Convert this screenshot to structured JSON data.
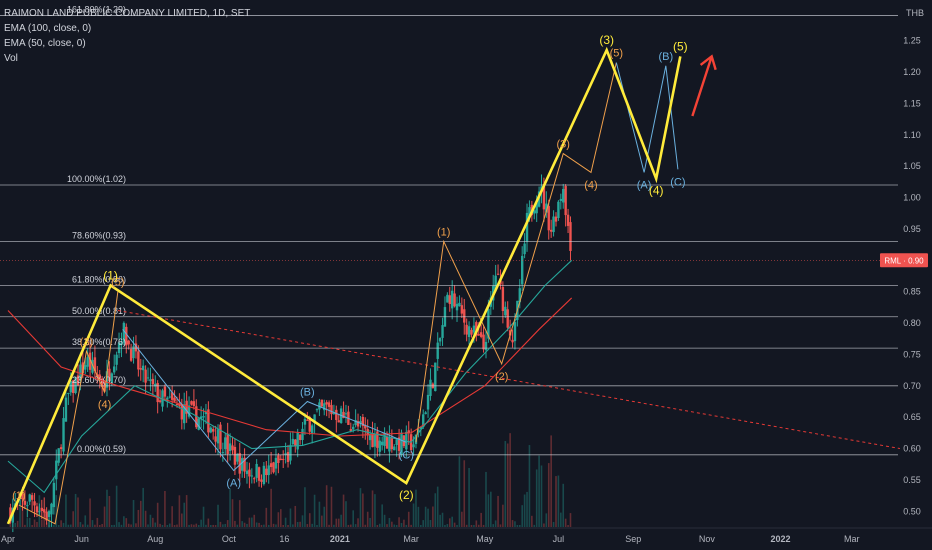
{
  "legend": {
    "title": "RAIMON LAND PUBLIC COMPANY LIMITED, 1D, SET",
    "ema100": "EMA (100, close, 0)",
    "ema50": "EMA (50, close, 0)",
    "vol": "Vol"
  },
  "currency": "THB",
  "last_price_tag": "RML · 0.90",
  "colors": {
    "background": "#131722",
    "candle_up": "#26a69a",
    "candle_down": "#ef5350",
    "fib": "#d1d4dc",
    "wave_main": "#ffeb3b",
    "wave_sub": "#f0a04b",
    "wave_corr": "#6ab0de",
    "ema100": "#e53935",
    "ema50": "#26a69a",
    "arrow": "#f44336",
    "trend": "#e53935"
  },
  "chart_data": {
    "type": "candlestick",
    "x_ticks": [
      "Apr",
      "Jun",
      "Aug",
      "Oct",
      "16",
      "2021",
      "Mar",
      "May",
      "Jul",
      "Sep",
      "Nov",
      "2022",
      "Mar"
    ],
    "y_ticks": [
      0.5,
      0.55,
      0.6,
      0.65,
      0.7,
      0.75,
      0.8,
      0.85,
      0.9,
      0.95,
      1.0,
      1.05,
      1.1,
      1.15,
      1.2,
      1.25
    ],
    "ylim": [
      0.475,
      1.31
    ],
    "last_price": 0.9,
    "fib_levels": [
      {
        "label": "161.80%(1.29)",
        "value": 1.29
      },
      {
        "label": "100.00%(1.02)",
        "value": 1.02
      },
      {
        "label": "78.60%(0.93)",
        "value": 0.93
      },
      {
        "label": "61.80%(0.86)",
        "value": 0.86
      },
      {
        "label": "50.00%(0.81)",
        "value": 0.81
      },
      {
        "label": "38.20%(0.76)",
        "value": 0.76
      },
      {
        "label": "23.60%(0.70)",
        "value": 0.7
      },
      {
        "label": "0.00%(0.59)",
        "value": 0.59
      }
    ],
    "price_series": [
      [
        "2020-04-01",
        0.5
      ],
      [
        "2020-04-20",
        0.52
      ],
      [
        "2020-05-05",
        0.49
      ],
      [
        "2020-05-20",
        0.68
      ],
      [
        "2020-06-05",
        0.74
      ],
      [
        "2020-06-20",
        0.7
      ],
      [
        "2020-07-05",
        0.79
      ],
      [
        "2020-07-20",
        0.72
      ],
      [
        "2020-08-05",
        0.68
      ],
      [
        "2020-08-25",
        0.66
      ],
      [
        "2020-09-15",
        0.64
      ],
      [
        "2020-09-30",
        0.6
      ],
      [
        "2020-10-15",
        0.565
      ],
      [
        "2020-11-01",
        0.56
      ],
      [
        "2020-11-20",
        0.59
      ],
      [
        "2020-12-05",
        0.64
      ],
      [
        "2020-12-20",
        0.665
      ],
      [
        "2021-01-05",
        0.65
      ],
      [
        "2021-01-25",
        0.62
      ],
      [
        "2021-02-15",
        0.61
      ],
      [
        "2021-03-05",
        0.61
      ],
      [
        "2021-03-20",
        0.72
      ],
      [
        "2021-04-01",
        0.85
      ],
      [
        "2021-04-15",
        0.8
      ],
      [
        "2021-04-30",
        0.76
      ],
      [
        "2021-05-10",
        0.88
      ],
      [
        "2021-05-25",
        0.77
      ],
      [
        "2021-06-05",
        0.96
      ],
      [
        "2021-06-15",
        1.02
      ],
      [
        "2021-06-25",
        0.95
      ],
      [
        "2021-07-05",
        1.02
      ],
      [
        "2021-07-12",
        0.9
      ]
    ],
    "ema100_series": [
      [
        "2020-04-01",
        0.82
      ],
      [
        "2020-05-15",
        0.73
      ],
      [
        "2020-07-01",
        0.7
      ],
      [
        "2020-09-01",
        0.665
      ],
      [
        "2020-11-01",
        0.63
      ],
      [
        "2021-01-01",
        0.62
      ],
      [
        "2021-03-01",
        0.625
      ],
      [
        "2021-05-01",
        0.7
      ],
      [
        "2021-06-15",
        0.79
      ],
      [
        "2021-07-12",
        0.84
      ]
    ],
    "ema50_series": [
      [
        "2020-04-01",
        0.58
      ],
      [
        "2020-05-01",
        0.53
      ],
      [
        "2020-06-01",
        0.62
      ],
      [
        "2020-07-15",
        0.7
      ],
      [
        "2020-09-01",
        0.655
      ],
      [
        "2020-10-20",
        0.6
      ],
      [
        "2020-12-01",
        0.605
      ],
      [
        "2021-01-15",
        0.63
      ],
      [
        "2021-03-01",
        0.61
      ],
      [
        "2021-04-15",
        0.72
      ],
      [
        "2021-05-20",
        0.79
      ],
      [
        "2021-06-20",
        0.86
      ],
      [
        "2021-07-12",
        0.9
      ]
    ],
    "trend_line": [
      [
        "2020-07-01",
        0.82
      ],
      [
        "2022-04-10",
        0.6
      ]
    ],
    "main_waves": [
      {
        "date": "2020-04-01",
        "value": 0.48,
        "label": ""
      },
      {
        "date": "2020-06-25",
        "value": 0.86,
        "label": "(1)"
      },
      {
        "date": "2021-02-25",
        "value": 0.545,
        "label": "(2)"
      },
      {
        "date": "2021-08-10",
        "value": 1.235,
        "label": "(3)"
      },
      {
        "date": "2021-09-20",
        "value": 1.03,
        "label": "(4)"
      },
      {
        "date": "2021-10-10",
        "value": 1.225,
        "label": "(5)"
      }
    ],
    "sub_waves_1": [
      {
        "date": "2020-04-10",
        "value": 0.51,
        "label": "(1)"
      },
      {
        "date": "2020-05-10",
        "value": 0.48,
        "label": ""
      },
      {
        "date": "2020-06-05",
        "value": 0.755,
        "label": "(3)"
      },
      {
        "date": "2020-06-20",
        "value": 0.69,
        "label": "(4)"
      },
      {
        "date": "2020-07-01",
        "value": 0.85,
        "label": "(5)"
      }
    ],
    "correction_abc_1": [
      {
        "date": "2020-07-05",
        "value": 0.79,
        "label": ""
      },
      {
        "date": "2020-10-05",
        "value": 0.565,
        "label": "(A)"
      },
      {
        "date": "2020-12-05",
        "value": 0.675,
        "label": "(B)"
      },
      {
        "date": "2021-02-25",
        "value": 0.61,
        "label": "(C)"
      }
    ],
    "sub_waves_3": [
      {
        "date": "2021-03-05",
        "value": 0.61,
        "label": ""
      },
      {
        "date": "2021-03-28",
        "value": 0.93,
        "label": "(1)"
      },
      {
        "date": "2021-05-15",
        "value": 0.735,
        "label": "(2)"
      },
      {
        "date": "2021-07-05",
        "value": 1.07,
        "label": "(3)"
      },
      {
        "date": "2021-07-28",
        "value": 1.04,
        "label": "(4)"
      },
      {
        "date": "2021-08-18",
        "value": 1.215,
        "label": "(5)"
      }
    ],
    "correction_abc_2": [
      {
        "date": "2021-08-18",
        "value": 1.215,
        "label": ""
      },
      {
        "date": "2021-09-10",
        "value": 1.04,
        "label": "(A)"
      },
      {
        "date": "2021-09-28",
        "value": 1.21,
        "label": "(B)"
      },
      {
        "date": "2021-10-08",
        "value": 1.045,
        "label": "(C)"
      }
    ],
    "projection_arrow": {
      "from": [
        "2021-10-20",
        1.13
      ],
      "to": [
        "2021-11-05",
        1.225
      ]
    }
  }
}
